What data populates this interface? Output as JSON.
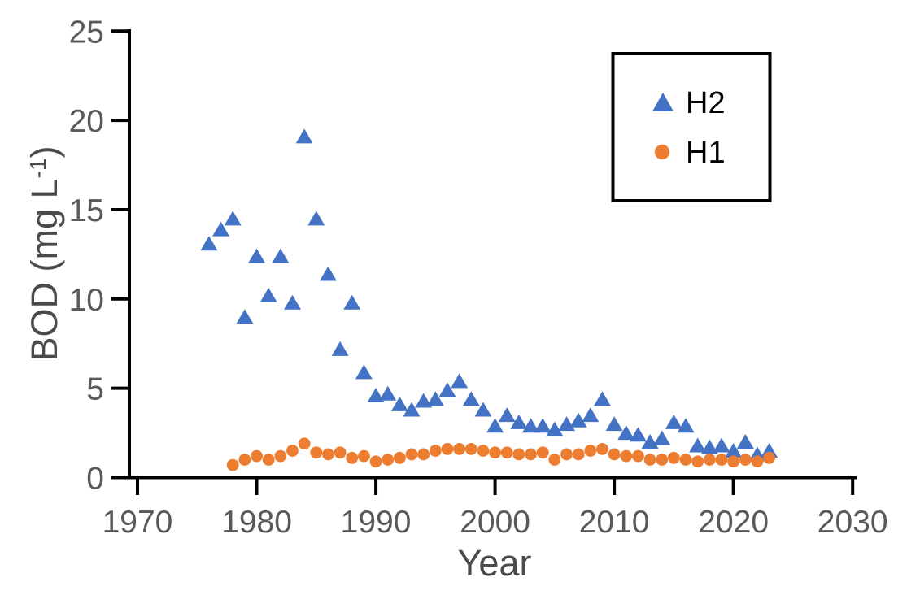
{
  "chart_data": {
    "type": "scatter",
    "title": "",
    "xlabel": "Year",
    "ylabel": "BOD (mg L-1)",
    "ylabel_parts": {
      "prefix": "BOD (mg L",
      "superscript": "-1",
      "suffix": ")"
    },
    "xlim": [
      1970,
      2030
    ],
    "ylim": [
      0,
      25
    ],
    "x_ticks": [
      1970,
      1980,
      1990,
      2000,
      2010,
      2020,
      2030
    ],
    "y_ticks": [
      0,
      5,
      10,
      15,
      20,
      25
    ],
    "grid": false,
    "legend_position": "top-right",
    "series": [
      {
        "name": "H2",
        "marker": "triangle",
        "color": "#4472C4",
        "points": [
          [
            1976,
            13.1
          ],
          [
            1977,
            13.9
          ],
          [
            1978,
            14.5
          ],
          [
            1979,
            9.0
          ],
          [
            1980,
            12.4
          ],
          [
            1981,
            10.2
          ],
          [
            1982,
            12.4
          ],
          [
            1983,
            9.8
          ],
          [
            1984,
            19.1
          ],
          [
            1985,
            14.5
          ],
          [
            1986,
            11.4
          ],
          [
            1987,
            7.2
          ],
          [
            1988,
            9.8
          ],
          [
            1989,
            5.9
          ],
          [
            1990,
            4.6
          ],
          [
            1991,
            4.7
          ],
          [
            1992,
            4.1
          ],
          [
            1993,
            3.8
          ],
          [
            1994,
            4.3
          ],
          [
            1995,
            4.4
          ],
          [
            1996,
            4.9
          ],
          [
            1997,
            5.4
          ],
          [
            1998,
            4.4
          ],
          [
            1999,
            3.8
          ],
          [
            2000,
            2.9
          ],
          [
            2001,
            3.5
          ],
          [
            2002,
            3.1
          ],
          [
            2003,
            2.9
          ],
          [
            2004,
            2.9
          ],
          [
            2005,
            2.7
          ],
          [
            2006,
            3.0
          ],
          [
            2007,
            3.2
          ],
          [
            2008,
            3.5
          ],
          [
            2009,
            4.4
          ],
          [
            2010,
            3.0
          ],
          [
            2011,
            2.5
          ],
          [
            2012,
            2.4
          ],
          [
            2013,
            2.0
          ],
          [
            2014,
            2.2
          ],
          [
            2015,
            3.1
          ],
          [
            2016,
            2.9
          ],
          [
            2017,
            1.8
          ],
          [
            2018,
            1.7
          ],
          [
            2019,
            1.8
          ],
          [
            2020,
            1.5
          ],
          [
            2021,
            2.0
          ],
          [
            2022,
            1.3
          ],
          [
            2023,
            1.5
          ]
        ]
      },
      {
        "name": "H1",
        "marker": "circle",
        "color": "#ED7D31",
        "points": [
          [
            1978,
            0.7
          ],
          [
            1979,
            1.0
          ],
          [
            1980,
            1.2
          ],
          [
            1981,
            1.0
          ],
          [
            1982,
            1.2
          ],
          [
            1983,
            1.5
          ],
          [
            1984,
            1.9
          ],
          [
            1985,
            1.4
          ],
          [
            1986,
            1.3
          ],
          [
            1987,
            1.4
          ],
          [
            1988,
            1.1
          ],
          [
            1989,
            1.2
          ],
          [
            1990,
            0.9
          ],
          [
            1991,
            1.0
          ],
          [
            1992,
            1.1
          ],
          [
            1993,
            1.3
          ],
          [
            1994,
            1.3
          ],
          [
            1995,
            1.5
          ],
          [
            1996,
            1.6
          ],
          [
            1997,
            1.6
          ],
          [
            1998,
            1.6
          ],
          [
            1999,
            1.5
          ],
          [
            2000,
            1.4
          ],
          [
            2001,
            1.4
          ],
          [
            2002,
            1.3
          ],
          [
            2003,
            1.3
          ],
          [
            2004,
            1.4
          ],
          [
            2005,
            1.0
          ],
          [
            2006,
            1.3
          ],
          [
            2007,
            1.3
          ],
          [
            2008,
            1.5
          ],
          [
            2009,
            1.6
          ],
          [
            2010,
            1.3
          ],
          [
            2011,
            1.2
          ],
          [
            2012,
            1.2
          ],
          [
            2013,
            1.0
          ],
          [
            2014,
            1.0
          ],
          [
            2015,
            1.1
          ],
          [
            2016,
            1.0
          ],
          [
            2017,
            0.9
          ],
          [
            2018,
            1.0
          ],
          [
            2019,
            1.0
          ],
          [
            2020,
            0.9
          ],
          [
            2021,
            1.0
          ],
          [
            2022,
            0.9
          ],
          [
            2023,
            1.1
          ]
        ]
      }
    ],
    "colors": {
      "axis_line": "#000000",
      "tick_label": "#595959",
      "axis_title": "#4a4a4a",
      "legend_text": "#000000",
      "background": "#ffffff"
    }
  }
}
